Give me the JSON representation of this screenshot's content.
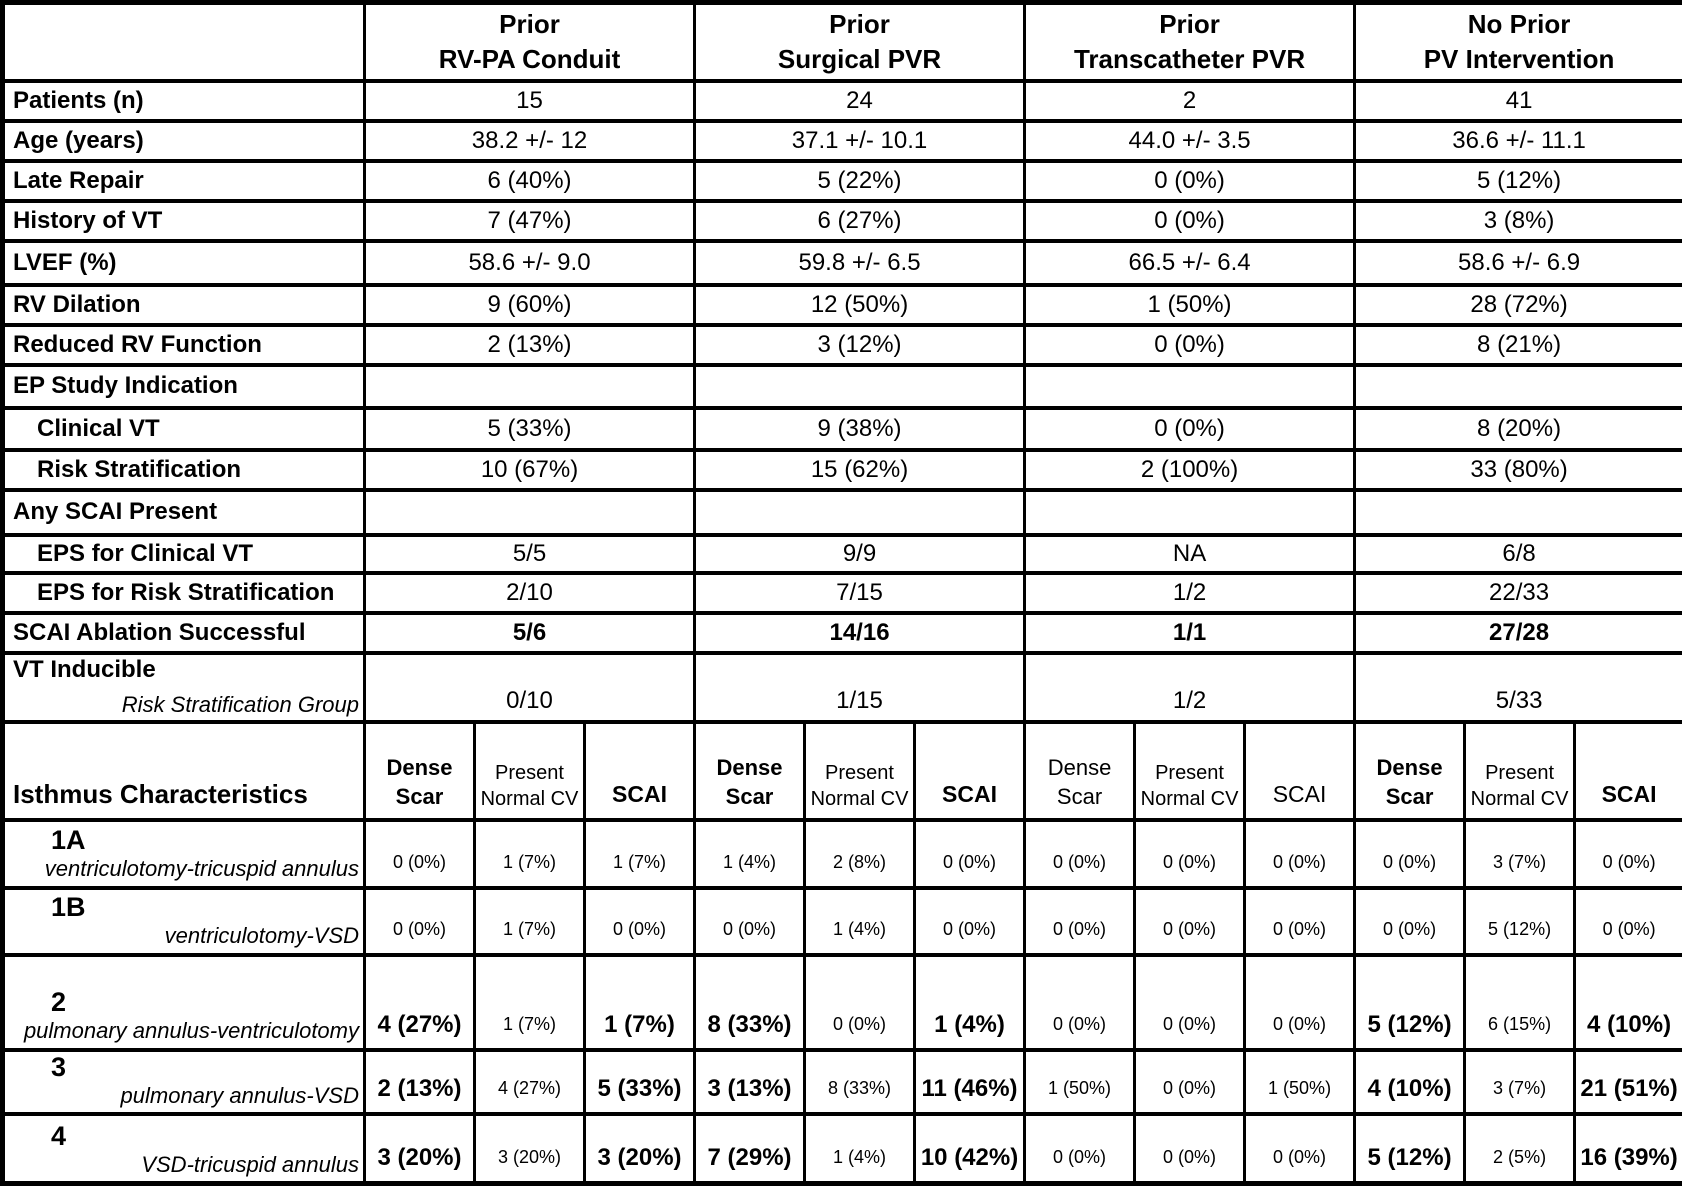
{
  "header": {
    "corner": "",
    "groups": [
      {
        "line1": "Prior",
        "line2": "RV-PA Conduit"
      },
      {
        "line1": "Prior",
        "line2": "Surgical PVR"
      },
      {
        "line1": "Prior",
        "line2": "Transcatheter PVR"
      },
      {
        "line1": "No Prior",
        "line2": "PV Intervention"
      }
    ]
  },
  "top_rows": [
    {
      "label": "Patients (n)",
      "indent": false,
      "bold": false,
      "values": [
        "15",
        "24",
        "2",
        "41"
      ]
    },
    {
      "label": "Age (years)",
      "indent": false,
      "bold": false,
      "values": [
        "38.2 +/- 12",
        "37.1 +/- 10.1",
        "44.0 +/- 3.5",
        "36.6 +/- 11.1"
      ]
    },
    {
      "label": "Late Repair",
      "indent": false,
      "bold": false,
      "values": [
        "6 (40%)",
        "5 (22%)",
        "0 (0%)",
        "5 (12%)"
      ]
    },
    {
      "label": "History of VT",
      "indent": false,
      "bold": false,
      "values": [
        "7 (47%)",
        "6 (27%)",
        "0 (0%)",
        "3 (8%)"
      ]
    },
    {
      "label": "LVEF (%)",
      "indent": false,
      "bold": false,
      "values": [
        "58.6 +/- 9.0",
        "59.8 +/- 6.5",
        "66.5 +/- 6.4",
        "58.6 +/- 6.9"
      ]
    },
    {
      "label": "RV Dilation",
      "indent": false,
      "bold": false,
      "values": [
        "9 (60%)",
        "12 (50%)",
        "1 (50%)",
        "28 (72%)"
      ]
    },
    {
      "label": "Reduced RV Function",
      "indent": false,
      "bold": false,
      "values": [
        "2 (13%)",
        "3 (12%)",
        "0 (0%)",
        "8 (21%)"
      ]
    },
    {
      "label": "EP Study Indication",
      "indent": false,
      "bold": false,
      "values": [
        "",
        "",
        "",
        ""
      ]
    },
    {
      "label": "Clinical VT",
      "indent": true,
      "bold": false,
      "values": [
        "5 (33%)",
        "9 (38%)",
        "0 (0%)",
        "8 (20%)"
      ]
    },
    {
      "label": "Risk Stratification",
      "indent": true,
      "bold": false,
      "values": [
        "10 (67%)",
        "15 (62%)",
        "2 (100%)",
        "33 (80%)"
      ]
    },
    {
      "label": "Any SCAI Present",
      "indent": false,
      "bold": false,
      "values": [
        "",
        "",
        "",
        ""
      ]
    },
    {
      "label": "EPS for Clinical VT",
      "indent": true,
      "bold": false,
      "values": [
        "5/5",
        "9/9",
        "NA",
        "6/8"
      ]
    },
    {
      "label": "EPS for Risk Stratification",
      "indent": true,
      "bold": false,
      "values": [
        "2/10",
        "7/15",
        "1/2",
        "22/33"
      ]
    },
    {
      "label": "SCAI Ablation Successful",
      "indent": false,
      "bold": true,
      "values": [
        "5/6",
        "14/16",
        "1/1",
        "27/28"
      ]
    }
  ],
  "vt_row": {
    "label": "VT Inducible",
    "sublabel": "Risk Stratification Group",
    "values": [
      "0/10",
      "1/15",
      "1/2",
      "5/33"
    ]
  },
  "isthmus": {
    "title": "Isthmus Characteristics",
    "subheaders": {
      "dense_line1": "Dense",
      "dense_line2": "Scar",
      "cv_line1": "Present",
      "cv_line2": "Normal CV",
      "scai": "SCAI"
    },
    "bold_groups": [
      true,
      true,
      false,
      true
    ],
    "rows": [
      {
        "id": "1A",
        "desc": "ventriculotomy-tricuspid annulus",
        "cells": [
          {
            "text": "0 (0%)",
            "bold": false
          },
          {
            "text": "1 (7%)",
            "bold": false
          },
          {
            "text": "1 (7%)",
            "bold": false
          },
          {
            "text": "1 (4%)",
            "bold": false
          },
          {
            "text": "2 (8%)",
            "bold": false
          },
          {
            "text": "0 (0%)",
            "bold": false
          },
          {
            "text": "0 (0%)",
            "bold": false
          },
          {
            "text": "0 (0%)",
            "bold": false
          },
          {
            "text": "0 (0%)",
            "bold": false
          },
          {
            "text": "0 (0%)",
            "bold": false
          },
          {
            "text": "3 (7%)",
            "bold": false
          },
          {
            "text": "0 (0%)",
            "bold": false
          }
        ]
      },
      {
        "id": "1B",
        "desc": "ventriculotomy-VSD",
        "cells": [
          {
            "text": "0 (0%)",
            "bold": false
          },
          {
            "text": "1 (7%)",
            "bold": false
          },
          {
            "text": "0 (0%)",
            "bold": false
          },
          {
            "text": "0 (0%)",
            "bold": false
          },
          {
            "text": "1 (4%)",
            "bold": false
          },
          {
            "text": "0 (0%)",
            "bold": false
          },
          {
            "text": "0 (0%)",
            "bold": false
          },
          {
            "text": "0 (0%)",
            "bold": false
          },
          {
            "text": "0 (0%)",
            "bold": false
          },
          {
            "text": "0 (0%)",
            "bold": false
          },
          {
            "text": "5 (12%)",
            "bold": false
          },
          {
            "text": "0 (0%)",
            "bold": false
          }
        ]
      },
      {
        "id": "2",
        "desc": "pulmonary annulus-ventriculotomy",
        "cells": [
          {
            "text": "4 (27%)",
            "bold": true
          },
          {
            "text": "1 (7%)",
            "bold": false
          },
          {
            "text": "1 (7%)",
            "bold": true
          },
          {
            "text": "8 (33%)",
            "bold": true
          },
          {
            "text": "0 (0%)",
            "bold": false
          },
          {
            "text": "1 (4%)",
            "bold": true
          },
          {
            "text": "0 (0%)",
            "bold": false
          },
          {
            "text": "0 (0%)",
            "bold": false
          },
          {
            "text": "0 (0%)",
            "bold": false
          },
          {
            "text": "5 (12%)",
            "bold": true
          },
          {
            "text": "6 (15%)",
            "bold": false
          },
          {
            "text": "4 (10%)",
            "bold": true
          }
        ]
      },
      {
        "id": "3",
        "desc": "pulmonary annulus-VSD",
        "cells": [
          {
            "text": "2 (13%)",
            "bold": true
          },
          {
            "text": "4 (27%)",
            "bold": false
          },
          {
            "text": "5 (33%)",
            "bold": true
          },
          {
            "text": "3 (13%)",
            "bold": true
          },
          {
            "text": "8 (33%)",
            "bold": false
          },
          {
            "text": "11 (46%)",
            "bold": true
          },
          {
            "text": "1 (50%)",
            "bold": false
          },
          {
            "text": "0 (0%)",
            "bold": false
          },
          {
            "text": "1 (50%)",
            "bold": false
          },
          {
            "text": "4 (10%)",
            "bold": true
          },
          {
            "text": "3 (7%)",
            "bold": false
          },
          {
            "text": "21 (51%)",
            "bold": true
          }
        ]
      },
      {
        "id": "4",
        "desc": "VSD-tricuspid annulus",
        "cells": [
          {
            "text": "3 (20%)",
            "bold": true
          },
          {
            "text": "3 (20%)",
            "bold": false
          },
          {
            "text": "3 (20%)",
            "bold": true
          },
          {
            "text": "7 (29%)",
            "bold": true
          },
          {
            "text": "1 (4%)",
            "bold": false
          },
          {
            "text": "10 (42%)",
            "bold": true
          },
          {
            "text": "0 (0%)",
            "bold": false
          },
          {
            "text": "0 (0%)",
            "bold": false
          },
          {
            "text": "0 (0%)",
            "bold": false
          },
          {
            "text": "5 (12%)",
            "bold": true
          },
          {
            "text": "2 (5%)",
            "bold": false
          },
          {
            "text": "16 (39%)",
            "bold": true
          }
        ]
      }
    ]
  }
}
